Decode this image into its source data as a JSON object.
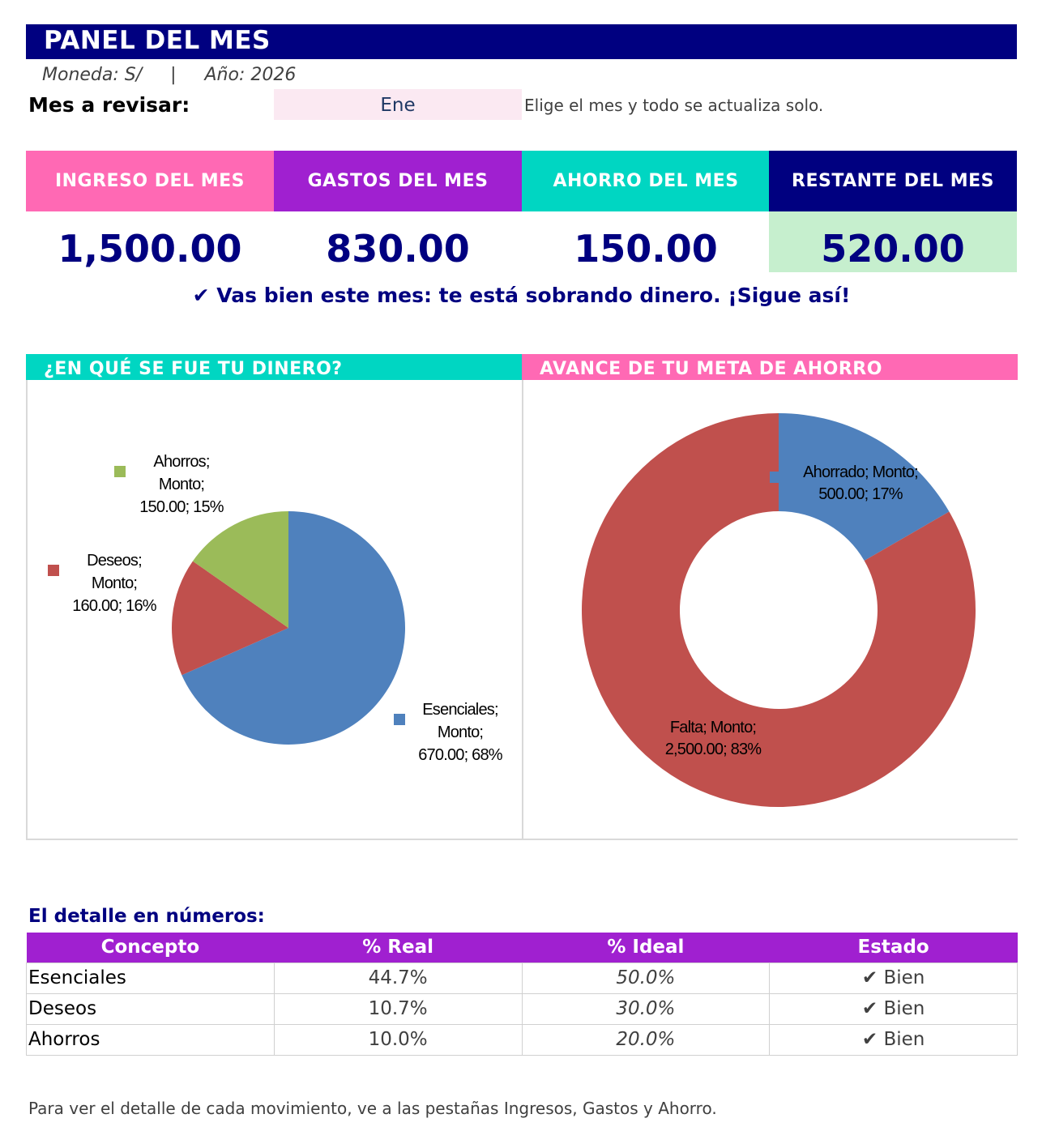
{
  "header": {
    "title": "PANEL DEL MES",
    "meta_line": "Moneda: S/     |     Año: 2026"
  },
  "selector": {
    "label": "Mes a revisar:",
    "value": "Ene",
    "hint": "Elige el mes y todo se actualiza solo."
  },
  "kpis": [
    {
      "label": "INGRESO DEL MES",
      "value": "1,500.00",
      "color": "#ff69b4"
    },
    {
      "label": "GASTOS DEL MES",
      "value": "830.00",
      "color": "#a020d0"
    },
    {
      "label": "AHORRO DEL MES",
      "value": "150.00",
      "color": "#00d6c2"
    },
    {
      "label": "RESTANTE DEL MES",
      "value": "520.00",
      "color": "#000080",
      "value_bg": "#c6efce"
    }
  ],
  "status_message": "✔ Vas bien este mes: te está sobrando dinero. ¡Sigue así!",
  "chart_data": [
    {
      "type": "pie",
      "title": "¿EN QUÉ SE FUE TU DINERO?",
      "header_color": "#00d6c2",
      "categories": [
        "Esenciales",
        "Deseos",
        "Ahorros"
      ],
      "values": [
        670,
        160,
        150
      ],
      "colors": [
        "#4f81bd",
        "#c0504d",
        "#9bbb59"
      ],
      "labels": [
        "Esenciales;|Monto;|670.00; 68%",
        "Deseos;|Monto;|160.00; 16%",
        "Ahorros;|Monto;|150.00; 15%"
      ]
    },
    {
      "type": "pie",
      "style": "donut",
      "title": "AVANCE DE TU META DE AHORRO",
      "header_color": "#ff69b4",
      "categories": [
        "Ahorrado",
        "Falta"
      ],
      "values": [
        500,
        2500
      ],
      "colors": [
        "#4f81bd",
        "#c0504d"
      ],
      "labels": [
        "Ahorrado; Monto;|500.00; 17%",
        "Falta; Monto;|2,500.00; 83%"
      ]
    }
  ],
  "detail": {
    "title": "El detalle en números:",
    "columns": [
      "Concepto",
      "% Real",
      "% Ideal",
      "Estado"
    ],
    "header_color": "#a020d0",
    "rows": [
      {
        "concept": "Esenciales",
        "real": "44.7%",
        "ideal": "50.0%",
        "status": "✔ Bien"
      },
      {
        "concept": "Deseos",
        "real": "10.7%",
        "ideal": "30.0%",
        "status": "✔ Bien"
      },
      {
        "concept": "Ahorros",
        "real": "10.0%",
        "ideal": "20.0%",
        "status": "✔ Bien"
      }
    ]
  },
  "footer_note": "Para ver el detalle de cada movimiento, ve a las pestañas Ingresos, Gastos y Ahorro."
}
